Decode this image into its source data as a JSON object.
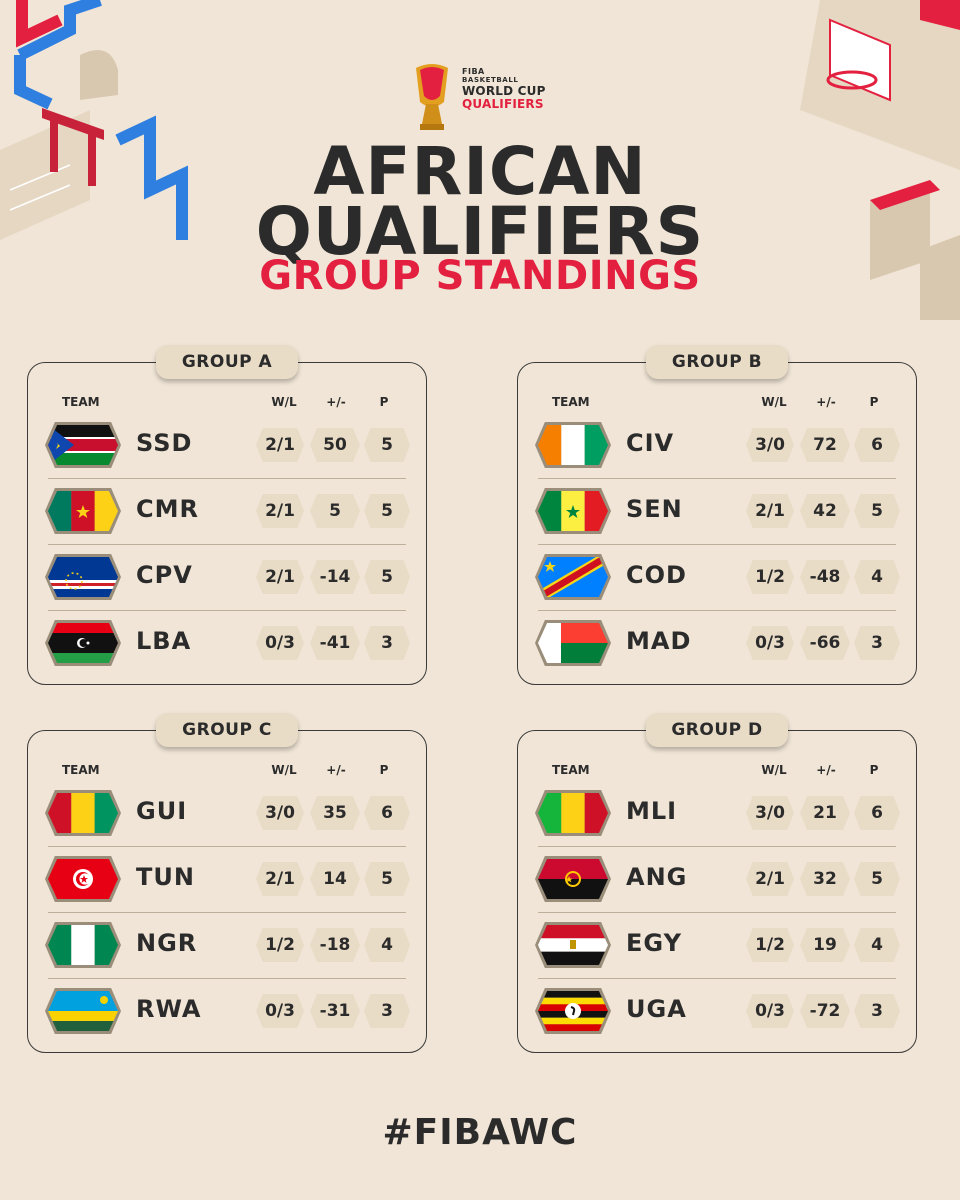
{
  "logo": {
    "line1": "FIBA",
    "line2": "BASKETBALL",
    "line3": "WORLD CUP",
    "line4": "QUALIFIERS"
  },
  "title": {
    "line1": "AFRICAN",
    "line2": "QUALIFIERS",
    "subtitle": "GROUP STANDINGS"
  },
  "columns": {
    "team": "TEAM",
    "wl": "W/L",
    "pm": "+/-",
    "pts": "P"
  },
  "groups": [
    {
      "label": "GROUP A",
      "rows": [
        {
          "code": "SSD",
          "flag": "south-sudan",
          "wl": "2/1",
          "pm": "50",
          "pts": "5"
        },
        {
          "code": "CMR",
          "flag": "cameroon",
          "wl": "2/1",
          "pm": "5",
          "pts": "5"
        },
        {
          "code": "CPV",
          "flag": "cape-verde",
          "wl": "2/1",
          "pm": "-14",
          "pts": "5"
        },
        {
          "code": "LBA",
          "flag": "libya",
          "wl": "0/3",
          "pm": "-41",
          "pts": "3"
        }
      ]
    },
    {
      "label": "GROUP B",
      "rows": [
        {
          "code": "CIV",
          "flag": "ivory-coast",
          "wl": "3/0",
          "pm": "72",
          "pts": "6"
        },
        {
          "code": "SEN",
          "flag": "senegal",
          "wl": "2/1",
          "pm": "42",
          "pts": "5"
        },
        {
          "code": "COD",
          "flag": "dr-congo",
          "wl": "1/2",
          "pm": "-48",
          "pts": "4"
        },
        {
          "code": "MAD",
          "flag": "madagascar",
          "wl": "0/3",
          "pm": "-66",
          "pts": "3"
        }
      ]
    },
    {
      "label": "GROUP C",
      "rows": [
        {
          "code": "GUI",
          "flag": "guinea",
          "wl": "3/0",
          "pm": "35",
          "pts": "6"
        },
        {
          "code": "TUN",
          "flag": "tunisia",
          "wl": "2/1",
          "pm": "14",
          "pts": "5"
        },
        {
          "code": "NGR",
          "flag": "nigeria",
          "wl": "1/2",
          "pm": "-18",
          "pts": "4"
        },
        {
          "code": "RWA",
          "flag": "rwanda",
          "wl": "0/3",
          "pm": "-31",
          "pts": "3"
        }
      ]
    },
    {
      "label": "GROUP D",
      "rows": [
        {
          "code": "MLI",
          "flag": "mali",
          "wl": "3/0",
          "pm": "21",
          "pts": "6"
        },
        {
          "code": "ANG",
          "flag": "angola",
          "wl": "2/1",
          "pm": "32",
          "pts": "5"
        },
        {
          "code": "EGY",
          "flag": "egypt",
          "wl": "1/2",
          "pm": "19",
          "pts": "4"
        },
        {
          "code": "UGA",
          "flag": "uganda",
          "wl": "0/3",
          "pm": "-72",
          "pts": "3"
        }
      ]
    }
  ],
  "hashtag": "#FIBAWC",
  "colors": {
    "background": "#f0e5d6",
    "accent": "#e3203f",
    "text": "#2b2b2b",
    "cell": "#e9dcc7",
    "blue_deco": "#2f7fe0"
  }
}
